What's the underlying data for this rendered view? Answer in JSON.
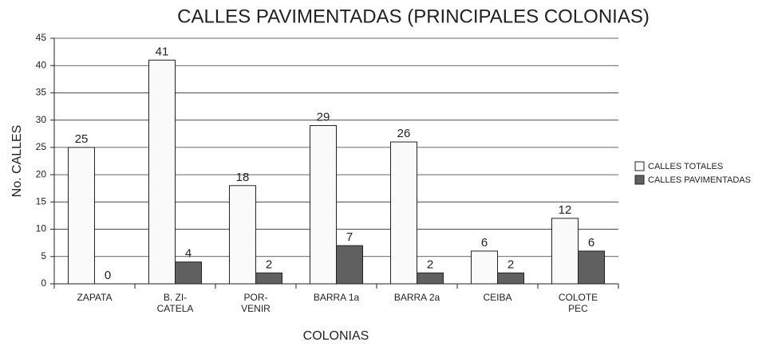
{
  "chart_data": {
    "type": "bar",
    "title": "CALLES PAVIMENTADAS (PRINCIPALES COLONIAS)",
    "x_label": "COLONIAS",
    "y_label": "No. CALLES",
    "categories": [
      "ZAPATA",
      "B. ZI-\nCATELA",
      "POR-\nVENIR",
      "BARRA 1a",
      "BARRA 2a",
      "CEIBA",
      "COLOTE\nPEC"
    ],
    "series": [
      {
        "name": "CALLES TOTALES",
        "color": "#fafafa",
        "values": [
          25,
          41,
          18,
          29,
          26,
          6,
          12
        ]
      },
      {
        "name": "CALLES PAVIMENTADAS",
        "color": "#606060",
        "values": [
          0,
          4,
          2,
          7,
          2,
          2,
          6
        ]
      }
    ],
    "ylim": [
      0,
      45
    ],
    "yticks": [
      0,
      5,
      10,
      15,
      20,
      25,
      30,
      35,
      40,
      45
    ],
    "grid": true,
    "legend": "right"
  }
}
